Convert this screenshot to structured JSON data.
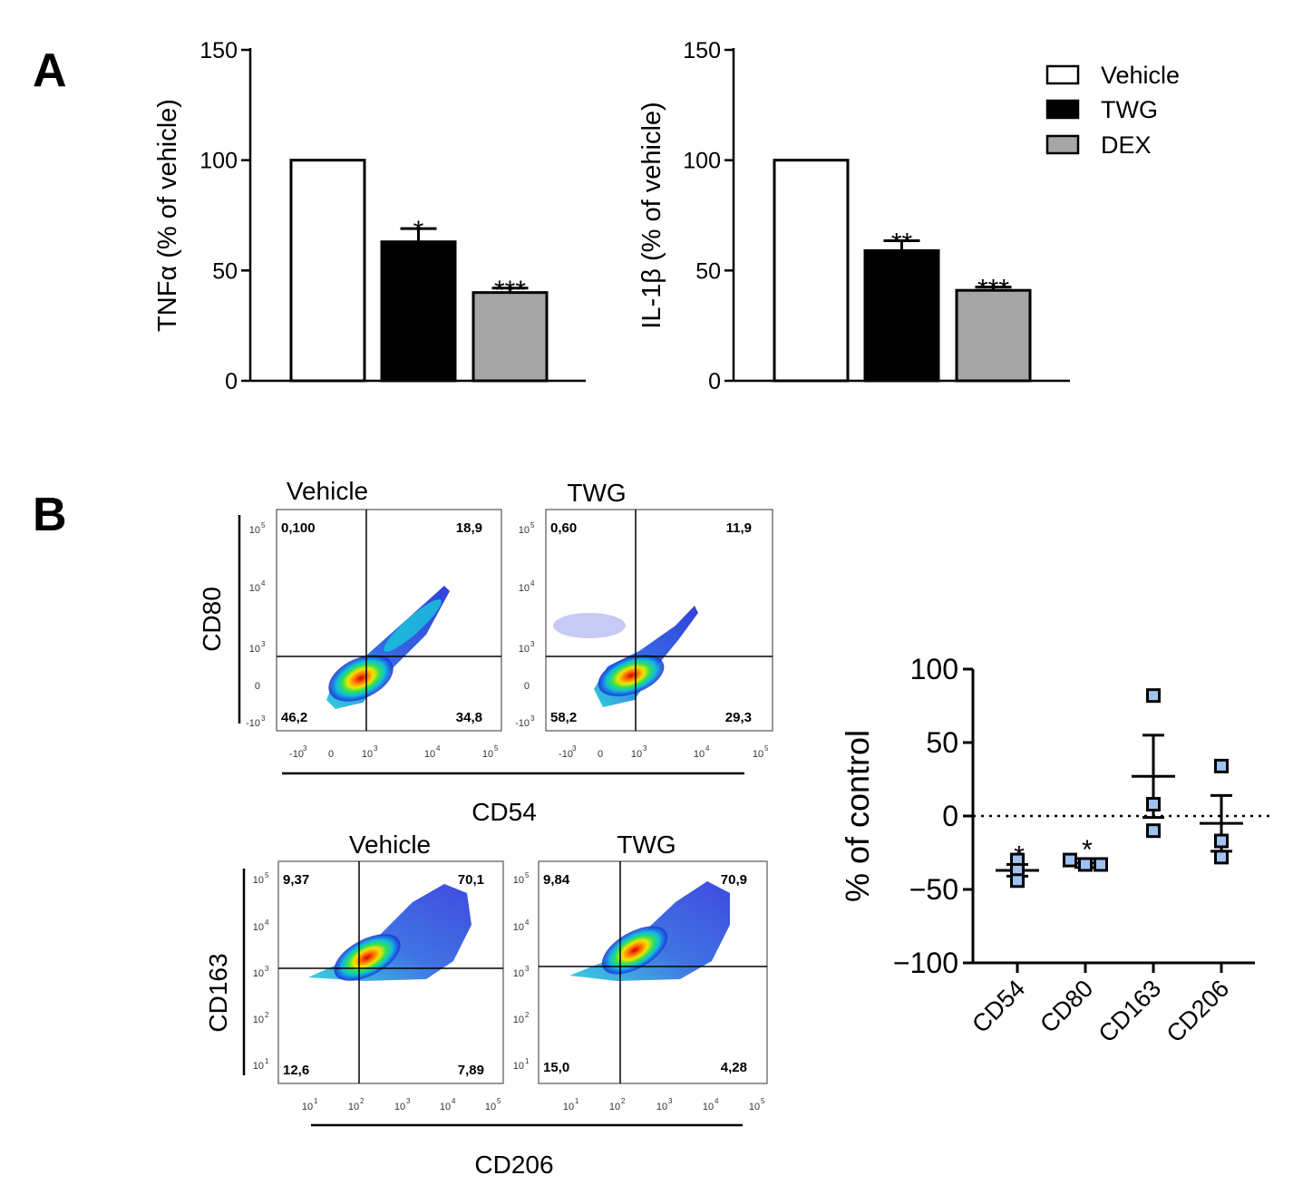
{
  "panel_labels": [
    "A",
    "B"
  ],
  "colors": {
    "vehicle": "#ffffff",
    "twg": "#000000",
    "dex": "#a6a6a6",
    "dot_fill": "#9ec3ef"
  },
  "legend": [
    {
      "label": "Vehicle",
      "color": "#ffffff"
    },
    {
      "label": "TWG",
      "color": "#000000"
    },
    {
      "label": "DEX",
      "color": "#a6a6a6"
    }
  ],
  "chart_data": [
    {
      "type": "bar",
      "id": "tnf",
      "title": "",
      "ylabel": "TNFα (% of vehicle)",
      "ylim": [
        0,
        150
      ],
      "yticks": [
        "0",
        "50",
        "100",
        "150"
      ],
      "categories": [
        "Vehicle",
        "TWG",
        "DEX"
      ],
      "values": [
        100,
        63,
        40
      ],
      "errors": [
        0,
        6,
        2
      ],
      "significance": [
        "",
        "*",
        "***"
      ]
    },
    {
      "type": "bar",
      "id": "il1b",
      "title": "",
      "ylabel": "IL-1β (% of vehicle)",
      "ylim": [
        0,
        150
      ],
      "yticks": [
        "0",
        "50",
        "100",
        "150"
      ],
      "categories": [
        "Vehicle",
        "TWG",
        "DEX"
      ],
      "values": [
        100,
        59,
        41
      ],
      "errors": [
        0,
        4.5,
        1.5
      ],
      "significance": [
        "",
        "**",
        "***"
      ]
    },
    {
      "type": "scatter",
      "id": "percent_control",
      "ylabel": "% of control",
      "ylim": [
        -100,
        100
      ],
      "yticks": [
        "100",
        "50",
        "0",
        "−50",
        "−100"
      ],
      "reference_line": 0,
      "categories": [
        "CD54",
        "CD80",
        "CD163",
        "CD206"
      ],
      "points": [
        [
          -30,
          -37,
          -44
        ],
        [
          -30,
          -33,
          -33
        ],
        [
          82,
          8,
          -10
        ],
        [
          34,
          -17,
          -28
        ]
      ],
      "means": [
        -37,
        -32,
        27,
        -5
      ],
      "sem": [
        4,
        3,
        28,
        19
      ],
      "significance": [
        "*",
        "*",
        "",
        ""
      ]
    }
  ],
  "flow_plots": {
    "row1": {
      "x_axis_label": "CD54",
      "y_axis_label": "CD80",
      "y_ticks": [
        "10",
        "10",
        "10",
        "0",
        "-10"
      ],
      "y_tick_exps": [
        "5",
        "4",
        "3",
        "",
        "3"
      ],
      "x_ticks": [
        "-10",
        "0",
        "10",
        "10",
        "10"
      ],
      "x_tick_exps": [
        "3",
        "",
        "3",
        "4",
        "5"
      ],
      "plots": [
        {
          "title": "Vehicle",
          "q_ul": "0,100",
          "q_ur": "18,9",
          "q_ll": "46,2",
          "q_lr": "34,8"
        },
        {
          "title": "TWG",
          "q_ul": "0,60",
          "q_ur": "11,9",
          "q_ll": "58,2",
          "q_lr": "29,3"
        }
      ]
    },
    "row2": {
      "x_axis_label": "CD206",
      "y_axis_label": "CD163",
      "y_ticks": [
        "10",
        "10",
        "10",
        "10",
        "10"
      ],
      "y_tick_exps": [
        "5",
        "4",
        "3",
        "2",
        "1"
      ],
      "x_ticks": [
        "10",
        "10",
        "10",
        "10",
        "10"
      ],
      "x_tick_exps": [
        "1",
        "2",
        "3",
        "4",
        "5"
      ],
      "plots": [
        {
          "title": "Vehicle",
          "q_ul": "9,37",
          "q_ur": "70,1",
          "q_ll": "12,6",
          "q_lr": "7,89"
        },
        {
          "title": "TWG",
          "q_ul": "9,84",
          "q_ur": "70,9",
          "q_ll": "15,0",
          "q_lr": "4,28"
        }
      ]
    }
  }
}
